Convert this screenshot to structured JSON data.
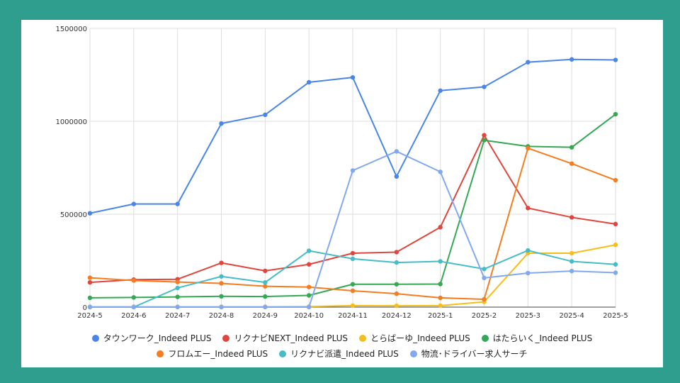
{
  "chart_data": {
    "type": "line",
    "title": "",
    "xlabel": "",
    "ylabel": "",
    "ylim": [
      0,
      1500000
    ],
    "yticks": [
      "0",
      "500000",
      "1000000",
      "1500000"
    ],
    "grid": true,
    "legend_position": "bottom",
    "categories": [
      "2024-5",
      "2024-6",
      "2024-7",
      "2024-8",
      "2024-9",
      "2024-10",
      "2024-11",
      "2024-12",
      "2025-1",
      "2025-2",
      "2025-3",
      "2025-4",
      "2025-5"
    ],
    "series": [
      {
        "name": "タウンワーク_Indeed PLUS",
        "color": "#4a86e8",
        "values": [
          505000,
          555000,
          555000,
          988000,
          1035000,
          1210000,
          1236000,
          703000,
          1165000,
          1185000,
          1318000,
          1333000,
          1330000
        ]
      },
      {
        "name": "リクナビNEXT_Indeed PLUS",
        "color": "#e0463d",
        "values": [
          133000,
          148000,
          150000,
          238000,
          195000,
          230000,
          290000,
          296000,
          430000,
          925000,
          533000,
          483000,
          447000
        ]
      },
      {
        "name": "とらばーゆ_Indeed PLUS",
        "color": "#f5be1b",
        "values": [
          2000,
          2000,
          2000,
          2000,
          2000,
          3000,
          8000,
          7000,
          8000,
          28000,
          290000,
          290000,
          335000
        ]
      },
      {
        "name": "はたらいく_Indeed PLUS",
        "color": "#34a853",
        "values": [
          50000,
          52000,
          55000,
          58000,
          57000,
          63000,
          123000,
          123000,
          124000,
          898000,
          865000,
          860000,
          1038000
        ]
      },
      {
        "name": "フロムエー_Indeed PLUS",
        "color": "#f57c1f",
        "values": [
          158000,
          143000,
          135000,
          128000,
          112000,
          108000,
          88000,
          72000,
          50000,
          42000,
          855000,
          772000,
          683000
        ]
      },
      {
        "name": "リクナビ派遣_Indeed PLUS",
        "color": "#46bdc6",
        "values": [
          0,
          0,
          103000,
          165000,
          133000,
          303000,
          260000,
          240000,
          246000,
          205000,
          305000,
          246000,
          230000
        ]
      },
      {
        "name": "物流･ドライバー求人サーチ",
        "color": "#82a9f0",
        "values": [
          0,
          0,
          0,
          0,
          0,
          0,
          735000,
          838000,
          728000,
          157000,
          183000,
          194000,
          185000
        ]
      }
    ]
  }
}
